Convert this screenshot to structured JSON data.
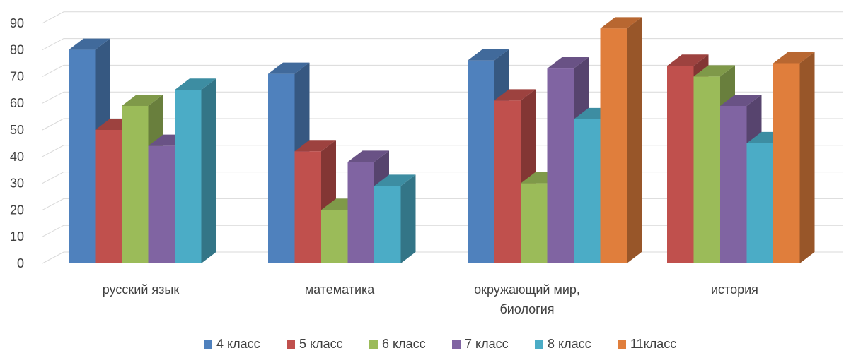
{
  "chart_data": {
    "type": "bar",
    "categories": [
      [
        "русский язык"
      ],
      [
        "математика"
      ],
      [
        "окружающий мир,",
        "биология"
      ],
      [
        "история"
      ]
    ],
    "series": [
      {
        "name": "4 класс",
        "color": "#4f81bd",
        "values": [
          80,
          71,
          76,
          null
        ]
      },
      {
        "name": "5 класс",
        "color": "#c0504d",
        "values": [
          50,
          42,
          61,
          74
        ]
      },
      {
        "name": "6 класс",
        "color": "#9bbb59",
        "values": [
          59,
          20,
          30,
          70
        ]
      },
      {
        "name": "7 класс",
        "color": "#8064a2",
        "values": [
          44,
          38,
          73,
          59
        ]
      },
      {
        "name": "8 класс",
        "color": "#4bacc6",
        "values": [
          65,
          29,
          54,
          45
        ]
      },
      {
        "name": "11класс",
        "color": "#e07e3c",
        "values": [
          null,
          null,
          88,
          75
        ]
      }
    ],
    "ylim": [
      0,
      90
    ],
    "yticks": [
      0,
      10,
      20,
      30,
      40,
      50,
      60,
      70,
      80,
      90
    ],
    "grid": true,
    "legend_position": "bottom"
  }
}
